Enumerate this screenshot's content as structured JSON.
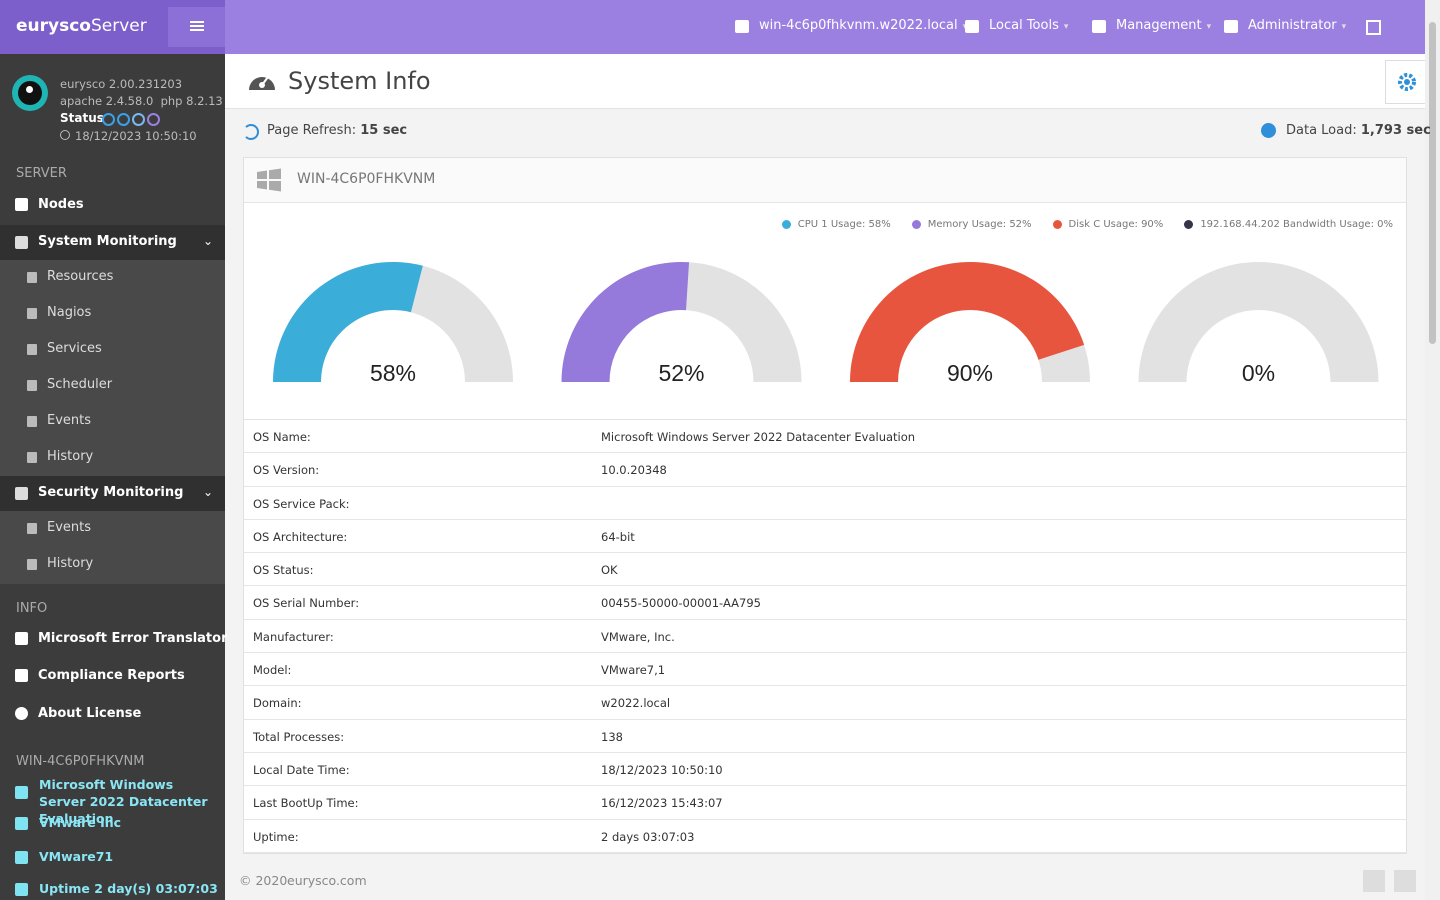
{
  "brand": {
    "bold": "eurysco",
    "rest": "Server"
  },
  "topbar": {
    "host": "win-4c6p0fhkvnm.w2022.local",
    "tools": "Local Tools",
    "management": "Management",
    "user": "Administrator"
  },
  "sidebar": {
    "about": {
      "version": "eurysco 2.00.231203",
      "stack": "apache 2.4.58.0  php 8.2.13",
      "status": "Status",
      "datetime": "18/12/2023 10:50:10"
    },
    "server": {
      "heading": "SERVER",
      "nodes": "Nodes",
      "system_monitoring": {
        "title": "System Monitoring",
        "items": [
          "Resources",
          "Nagios",
          "Services",
          "Scheduler",
          "Events",
          "History"
        ]
      },
      "security_monitoring": {
        "title": "Security Monitoring",
        "items": [
          "Events",
          "History"
        ]
      }
    },
    "info": {
      "heading": "INFO",
      "items": [
        "Microsoft Error Translator",
        "Compliance Reports",
        "About License"
      ]
    },
    "host": {
      "heading": "WIN-4C6P0FHKVNM",
      "items": [
        "Microsoft Windows Server 2022 Datacenter Evaluation",
        "VMware Inc",
        "VMware71",
        "Uptime 2 day(s) 03:07:03"
      ]
    }
  },
  "page": {
    "title": "System Info",
    "refresh_label": "Page Refresh:",
    "refresh_value": "15 sec",
    "load_label": "Data Load:",
    "load_value": "1,793 sec",
    "panel_title": "WIN-4C6P0FHKVNM"
  },
  "chart_data": {
    "type": "gauge",
    "ylim": [
      0,
      100
    ],
    "series": [
      {
        "name": "CPU 1 Usage: 58%",
        "color": "#3badd9",
        "values": [
          58
        ],
        "value_labels": [
          "58%"
        ]
      },
      {
        "name": "Memory Usage: 52%",
        "color": "#9579db",
        "values": [
          52
        ],
        "value_labels": [
          "52%"
        ]
      },
      {
        "name": "Disk C Usage: 90%",
        "color": "#e8553e",
        "values": [
          90
        ],
        "value_labels": [
          "90%"
        ]
      },
      {
        "name": "192.168.44.202 Bandwidth Usage: 0%",
        "color": "#34344a",
        "values": [
          0
        ],
        "value_labels": [
          "0%"
        ]
      }
    ],
    "track_color": "#e2e2e2"
  },
  "table": {
    "rows": [
      [
        "OS Name:",
        "Microsoft Windows Server 2022 Datacenter Evaluation"
      ],
      [
        "OS Version:",
        "10.0.20348"
      ],
      [
        "OS Service Pack:"
      ],
      [
        "OS Architecture:",
        "64-bit"
      ],
      [
        "OS Status:",
        "OK"
      ],
      [
        "OS Serial Number:",
        "00455-50000-00001-AA795"
      ],
      [
        "Manufacturer:",
        "VMware, Inc."
      ],
      [
        "Model:",
        "VMware7,1"
      ],
      [
        "Domain:",
        "w2022.local"
      ],
      [
        "Total Processes:",
        "138"
      ],
      [
        "Local Date Time:",
        "18/12/2023 10:50:10"
      ],
      [
        "Last BootUp Time:",
        "16/12/2023 15:43:07"
      ],
      [
        "Uptime:",
        "2 days 03:07:03"
      ]
    ]
  },
  "footer": {
    "copyright": "© 2020",
    "site": "eurysco.com"
  }
}
